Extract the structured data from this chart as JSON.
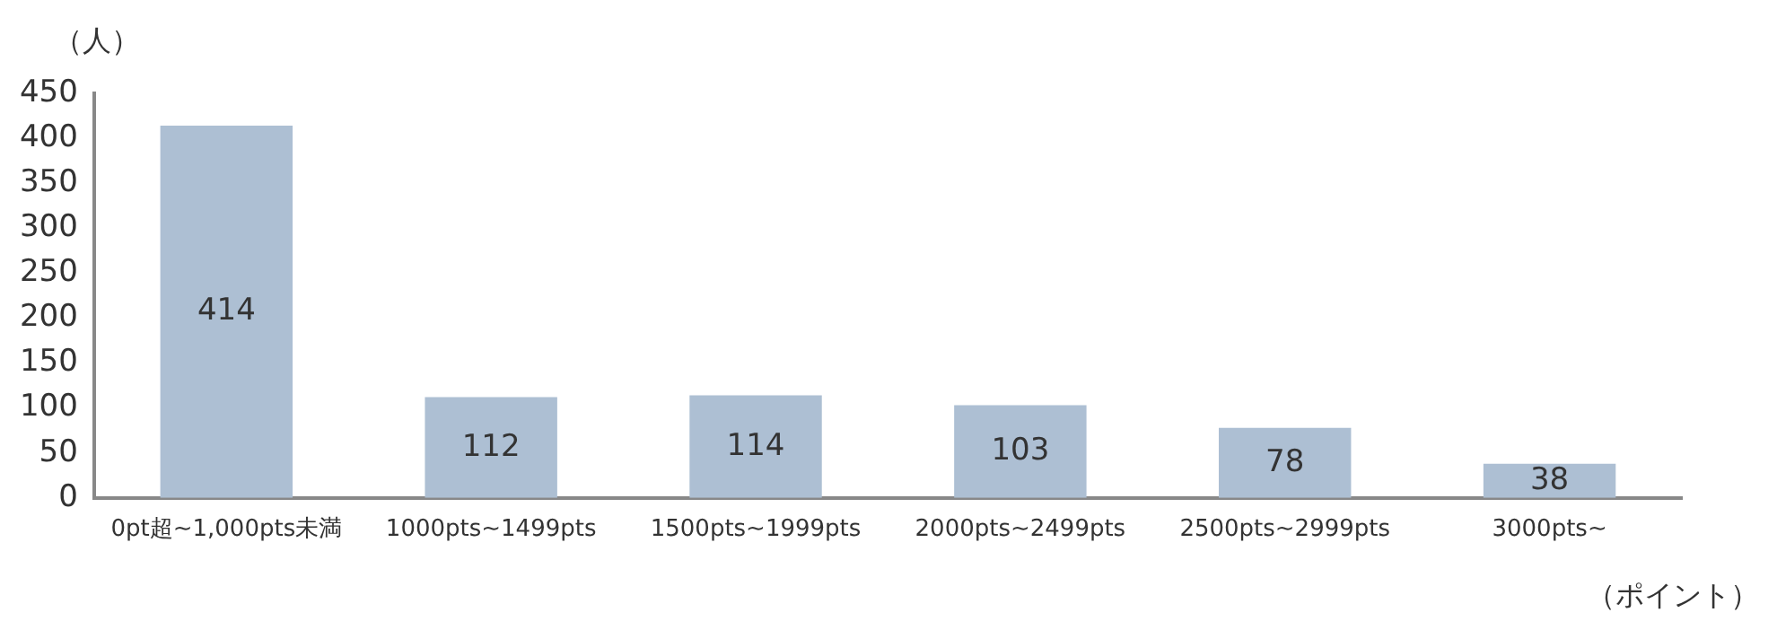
{
  "chart_data": {
    "type": "bar",
    "ylabel": "（人）",
    "xlabel": "（ポイント）",
    "categories": [
      "0pt超~1,000pts未満",
      "1000pts~1499pts",
      "1500pts~1999pts",
      "2000pts~2499pts",
      "2500pts~2999pts",
      "3000pts~"
    ],
    "values": [
      414,
      112,
      114,
      103,
      78,
      38
    ],
    "color": "#adbfd3",
    "data_labels": true,
    "ylim": [
      0,
      450
    ],
    "yticks": [
      0,
      50,
      100,
      150,
      200,
      250,
      300,
      350,
      400,
      450
    ],
    "grid": false,
    "legend": false
  }
}
